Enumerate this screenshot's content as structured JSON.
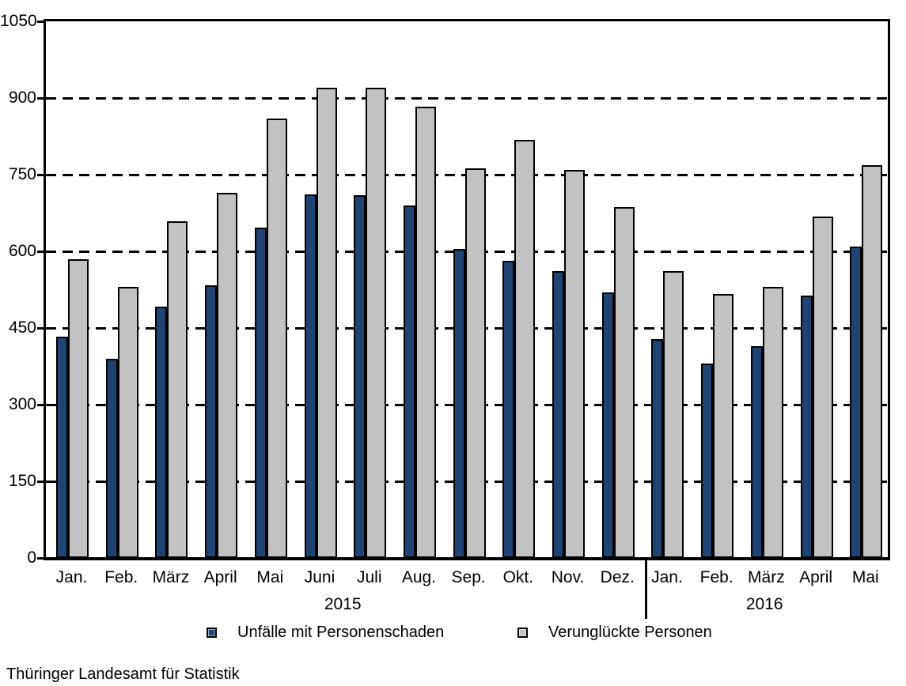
{
  "chart_data": {
    "type": "bar",
    "title": "",
    "categories": [
      "Jan.",
      "Feb.",
      "März",
      "April",
      "Mai",
      "Juni",
      "Juli",
      "Aug.",
      "Sep.",
      "Okt.",
      "Nov.",
      "Dez.",
      "Jan.",
      "Feb.",
      "März",
      "April",
      "Mai"
    ],
    "year_groups": [
      {
        "label": "2015",
        "count": 12
      },
      {
        "label": "2016",
        "count": 5
      }
    ],
    "series": [
      {
        "name": "Unfälle mit Personenschaden",
        "color": "#1f4473",
        "values": [
          433,
          390,
          491,
          534,
          647,
          712,
          710,
          689,
          605,
          582,
          562,
          519,
          429,
          381,
          415,
          513,
          609
        ]
      },
      {
        "name": "Verunglückte Personen",
        "color": "#c2c2c2",
        "values": [
          585,
          530,
          658,
          715,
          860,
          920,
          920,
          883,
          762,
          818,
          759,
          686,
          562,
          517,
          530,
          668,
          768
        ]
      }
    ],
    "ylim": [
      0,
      1050
    ],
    "ytick_step": 150,
    "ytick_labels": [
      "0",
      "150",
      "300",
      "450",
      "600",
      "750",
      "900",
      "1050"
    ],
    "grid": "horizontal-dashed",
    "legend_position": "bottom",
    "xlabel": "",
    "ylabel": ""
  },
  "footer": {
    "source": "Thüringer Landesamt für Statistik"
  }
}
